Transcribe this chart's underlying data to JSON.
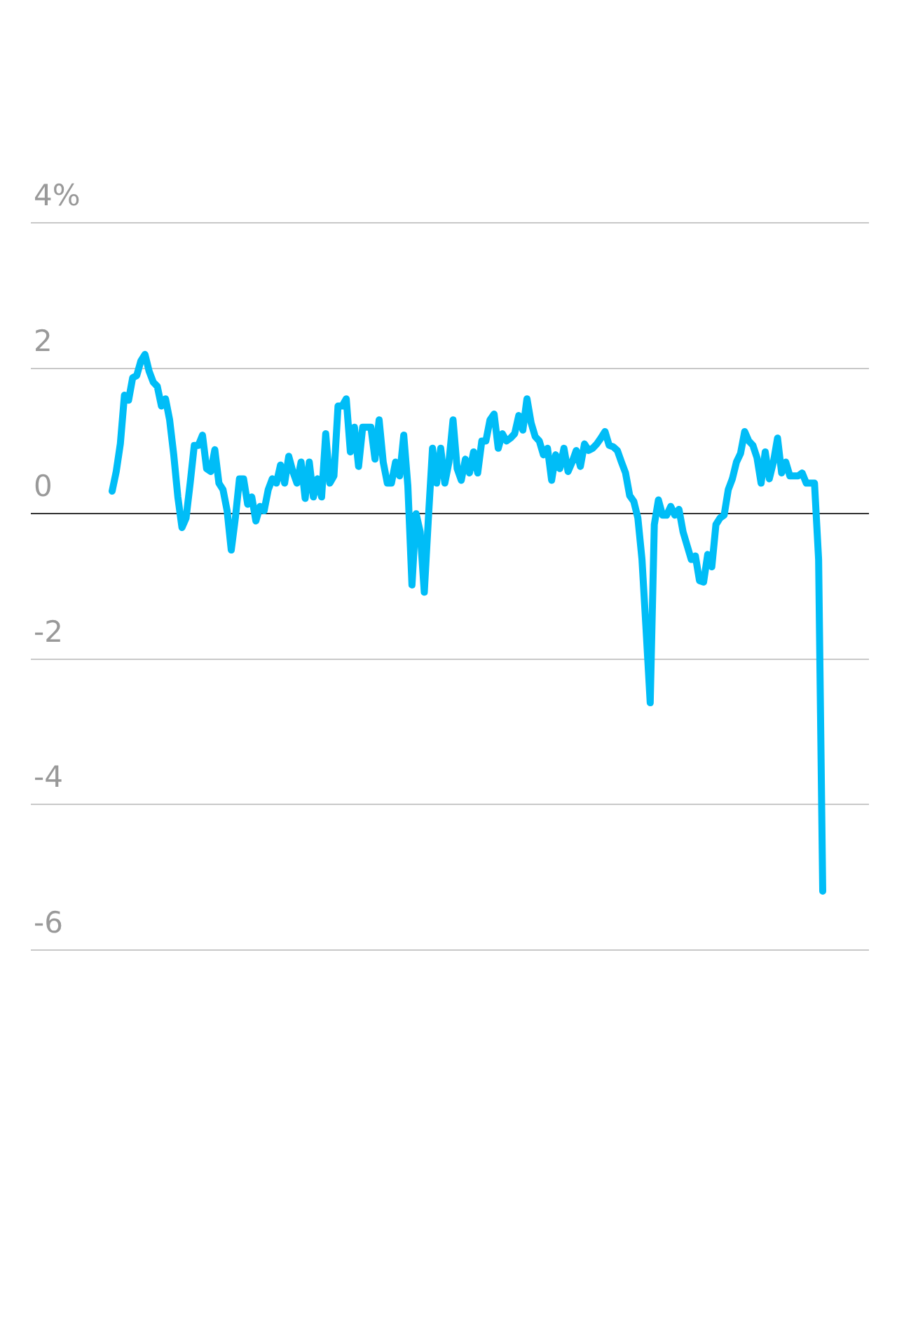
{
  "chart_data": {
    "type": "line",
    "color": "#00bdf7",
    "marker": "none",
    "line_style": "solid",
    "grid": "y",
    "legend": false,
    "ylim": [
      -6,
      4
    ],
    "yticks": [
      {
        "value": 4,
        "label": "4%"
      },
      2,
      0,
      -2,
      -4,
      -6
    ],
    "categories": [
      null,
      null,
      null,
      null,
      null,
      null,
      null,
      null,
      null,
      null,
      null,
      null,
      null,
      null,
      null,
      null,
      null,
      null,
      null,
      null,
      null,
      null,
      null,
      null,
      null,
      null,
      null,
      null,
      null,
      null,
      null,
      null,
      null,
      null,
      null,
      null,
      null,
      null,
      null,
      null,
      null,
      null,
      null,
      null,
      null,
      null,
      null,
      null,
      null,
      null,
      null,
      null,
      null,
      null,
      null,
      null,
      null,
      null,
      null,
      null,
      null,
      null,
      null,
      null,
      null,
      null,
      null,
      null,
      null,
      null,
      null,
      null,
      null,
      null,
      null,
      null,
      null,
      null,
      null,
      null,
      null,
      null,
      null,
      null,
      null,
      null,
      null,
      null,
      null,
      null,
      null,
      null,
      null,
      null,
      null,
      null,
      null,
      null,
      null,
      null,
      null,
      null,
      null,
      null,
      null,
      null,
      null,
      null,
      null,
      null,
      null,
      null,
      null,
      null,
      null,
      null,
      null,
      null,
      null,
      null,
      null,
      null,
      null,
      null,
      null,
      null,
      null,
      null,
      null,
      null,
      null,
      null,
      null,
      null,
      null,
      null,
      null,
      null,
      null,
      null,
      null,
      null,
      null,
      null,
      null,
      null,
      null,
      null,
      null,
      null,
      null,
      null,
      null,
      null,
      null,
      null,
      null,
      null,
      null,
      null,
      null,
      null,
      null,
      null,
      null,
      null,
      null,
      null,
      null,
      null,
      null,
      null,
      null,
      null
    ],
    "values": [
      0.31,
      0.58,
      0.96,
      1.63,
      1.56,
      1.87,
      1.9,
      2.1,
      2.19,
      1.96,
      1.81,
      1.75,
      1.48,
      1.58,
      1.29,
      0.81,
      0.23,
      -0.19,
      -0.06,
      0.42,
      0.94,
      0.94,
      1.08,
      0.62,
      0.58,
      0.88,
      0.42,
      0.33,
      0.04,
      -0.5,
      -0.06,
      0.48,
      0.48,
      0.13,
      0.23,
      -0.1,
      0.1,
      0.04,
      0.33,
      0.48,
      0.42,
      0.67,
      0.42,
      0.79,
      0.58,
      0.42,
      0.71,
      0.21,
      0.71,
      0.23,
      0.48,
      0.23,
      1.1,
      0.42,
      0.52,
      1.48,
      1.48,
      1.58,
      0.85,
      1.19,
      0.65,
      1.19,
      1.19,
      1.19,
      0.75,
      1.29,
      0.71,
      0.42,
      0.42,
      0.71,
      0.52,
      1.08,
      0.38,
      -0.98,
      0,
      -0.25,
      -1.08,
      -0.06,
      0.9,
      0.42,
      0.9,
      0.42,
      0.71,
      1.29,
      0.62,
      0.46,
      0.75,
      0.56,
      0.85,
      0.56,
      1.0,
      1.0,
      1.29,
      1.37,
      0.9,
      1.1,
      1.0,
      1.04,
      1.1,
      1.35,
      1.15,
      1.58,
      1.25,
      1.06,
      1.0,
      0.81,
      0.9,
      0.46,
      0.81,
      0.62,
      0.9,
      0.58,
      0.71,
      0.87,
      0.65,
      0.96,
      0.87,
      0.9,
      0.96,
      1.04,
      1.13,
      0.94,
      0.92,
      0.87,
      0.71,
      0.56,
      0.25,
      0.17,
      -0.06,
      -0.63,
      -1.6,
      -2.6,
      -0.15,
      0.19,
      -0.02,
      -0.02,
      0.1,
      -0.02,
      0.06,
      -0.25,
      -0.44,
      -0.63,
      -0.58,
      -0.92,
      -0.94,
      -0.56,
      -0.73,
      -0.15,
      -0.06,
      -0.02,
      0.33,
      0.48,
      0.71,
      0.83,
      1.13,
      1.0,
      0.94,
      0.77,
      0.42,
      0.85,
      0.48,
      0.71,
      1.04,
      0.56,
      0.71,
      0.52,
      0.52,
      0.52,
      0.56,
      0.42,
      0.42,
      0.42,
      -0.63,
      -5.19
    ]
  }
}
